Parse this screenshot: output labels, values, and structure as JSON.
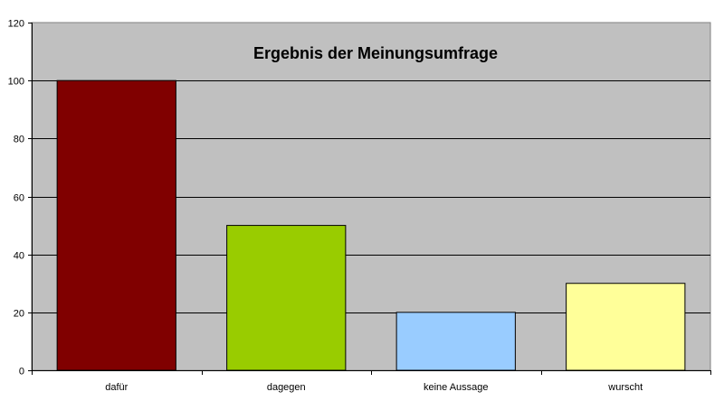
{
  "chart_data": {
    "type": "bar",
    "title": "Ergebnis der Meinungsumfrage",
    "xlabel": "",
    "ylabel": "",
    "categories": [
      "dafür",
      "dagegen",
      "keine Aussage",
      "wurscht"
    ],
    "values": [
      100,
      50,
      20,
      30
    ],
    "bar_colors": [
      "#800000",
      "#99cc00",
      "#99ccff",
      "#ffff99"
    ],
    "ylim": [
      0,
      120
    ],
    "yticks": [
      "0",
      "20",
      "40",
      "60",
      "80",
      "100",
      "120"
    ],
    "grid": true,
    "legend": "none",
    "plot_background": "#c0c0c0"
  }
}
